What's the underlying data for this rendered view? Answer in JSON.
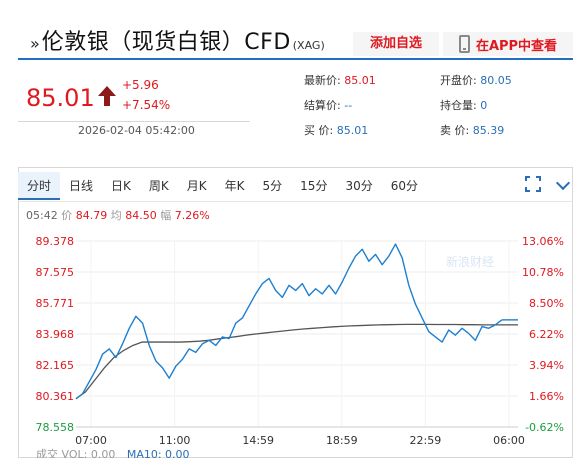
{
  "header": {
    "title_arrow": "»",
    "title": "伦敦银（现货白银）CFD",
    "title_sub": "(XAG)",
    "add_favorite": "添加自选",
    "view_in_app": "在APP中查看"
  },
  "quote": {
    "price": "85.01",
    "change": "+5.96",
    "change_pct": "+7.54%",
    "timestamp": "2026-02-04 05:42:00"
  },
  "stats": {
    "latest_label": "最新价:",
    "latest_value": "85.01",
    "settle_label": "结算价:",
    "settle_value": "--",
    "bid_label": "买  价:",
    "bid_value": "85.01",
    "open_label": "开盘价:",
    "open_value": "80.05",
    "oi_label": "持仓量:",
    "oi_value": "0",
    "ask_label": "卖  价:",
    "ask_value": "85.39"
  },
  "tabs": [
    "分时",
    "日线",
    "日K",
    "周K",
    "月K",
    "年K",
    "5分",
    "15分",
    "30分",
    "60分"
  ],
  "active_tab": "分时",
  "info": {
    "time": "05:42",
    "price_label": "价",
    "price": "84.79",
    "avg_label": "均",
    "avg": "84.50",
    "amp_label": "幅",
    "amp": "7.26%"
  },
  "volume": {
    "label": "成交",
    "vol_label": "VOL: 0.00",
    "ma_label": "MA10: 0.00"
  },
  "watermark": "新浪财经",
  "colors": {
    "up": "#e0181f",
    "down": "#1a9e3f",
    "accent": "#2a6fb6",
    "price_line": "#1f7fd0",
    "avg_line": "#555555"
  },
  "icons": [
    "phone-icon",
    "up-arrow-icon",
    "expand-icon",
    "chevron-down-icon"
  ],
  "chart_data": {
    "type": "line",
    "y_left_ticks": [
      "89.378",
      "87.575",
      "85.771",
      "83.968",
      "82.165",
      "80.361",
      "78.558"
    ],
    "y_right_ticks": [
      "13.06%",
      "10.78%",
      "8.50%",
      "6.22%",
      "3.94%",
      "1.66%",
      "-0.62%"
    ],
    "x_ticks": [
      "07:00",
      "11:00",
      "14:59",
      "18:59",
      "22:59",
      "06:00"
    ],
    "ylim": [
      78.558,
      89.378
    ],
    "series": [
      {
        "values": [
          80.2,
          80.5,
          81.2,
          81.9,
          82.8,
          83.1,
          82.6,
          83.4,
          84.3,
          85.0,
          84.6,
          83.3,
          82.4,
          82.0,
          81.4,
          82.1,
          82.5,
          83.1,
          82.9,
          83.4,
          83.6,
          83.3,
          83.8,
          83.7,
          84.6,
          84.9,
          85.6,
          86.3,
          86.9,
          87.2,
          86.5,
          86.1,
          86.8,
          86.5,
          86.9,
          86.2,
          86.6,
          86.3,
          86.8,
          86.3,
          87.0,
          87.8,
          88.5,
          88.9,
          88.2,
          88.6,
          88.0,
          88.5,
          89.2,
          88.4,
          86.8,
          85.7,
          84.9,
          84.1,
          83.8,
          83.5,
          84.2,
          83.9,
          84.3,
          84.0,
          83.6,
          84.4,
          84.3,
          84.5,
          84.79
        ]
      },
      {
        "values": [
          80.2,
          80.6,
          81.3,
          82.0,
          82.6,
          83.0,
          83.3,
          83.5,
          83.5,
          83.5,
          83.5,
          83.5,
          83.52,
          83.55,
          83.6,
          83.68,
          83.75,
          83.82,
          83.9,
          83.97,
          84.03,
          84.09,
          84.15,
          84.21,
          84.26,
          84.3,
          84.34,
          84.38,
          84.41,
          84.44,
          84.46,
          84.48,
          84.5,
          84.51,
          84.52,
          84.53,
          84.53,
          84.53,
          84.52,
          84.52,
          84.52,
          84.51,
          84.51,
          84.5,
          84.5,
          84.5
        ]
      }
    ]
  }
}
